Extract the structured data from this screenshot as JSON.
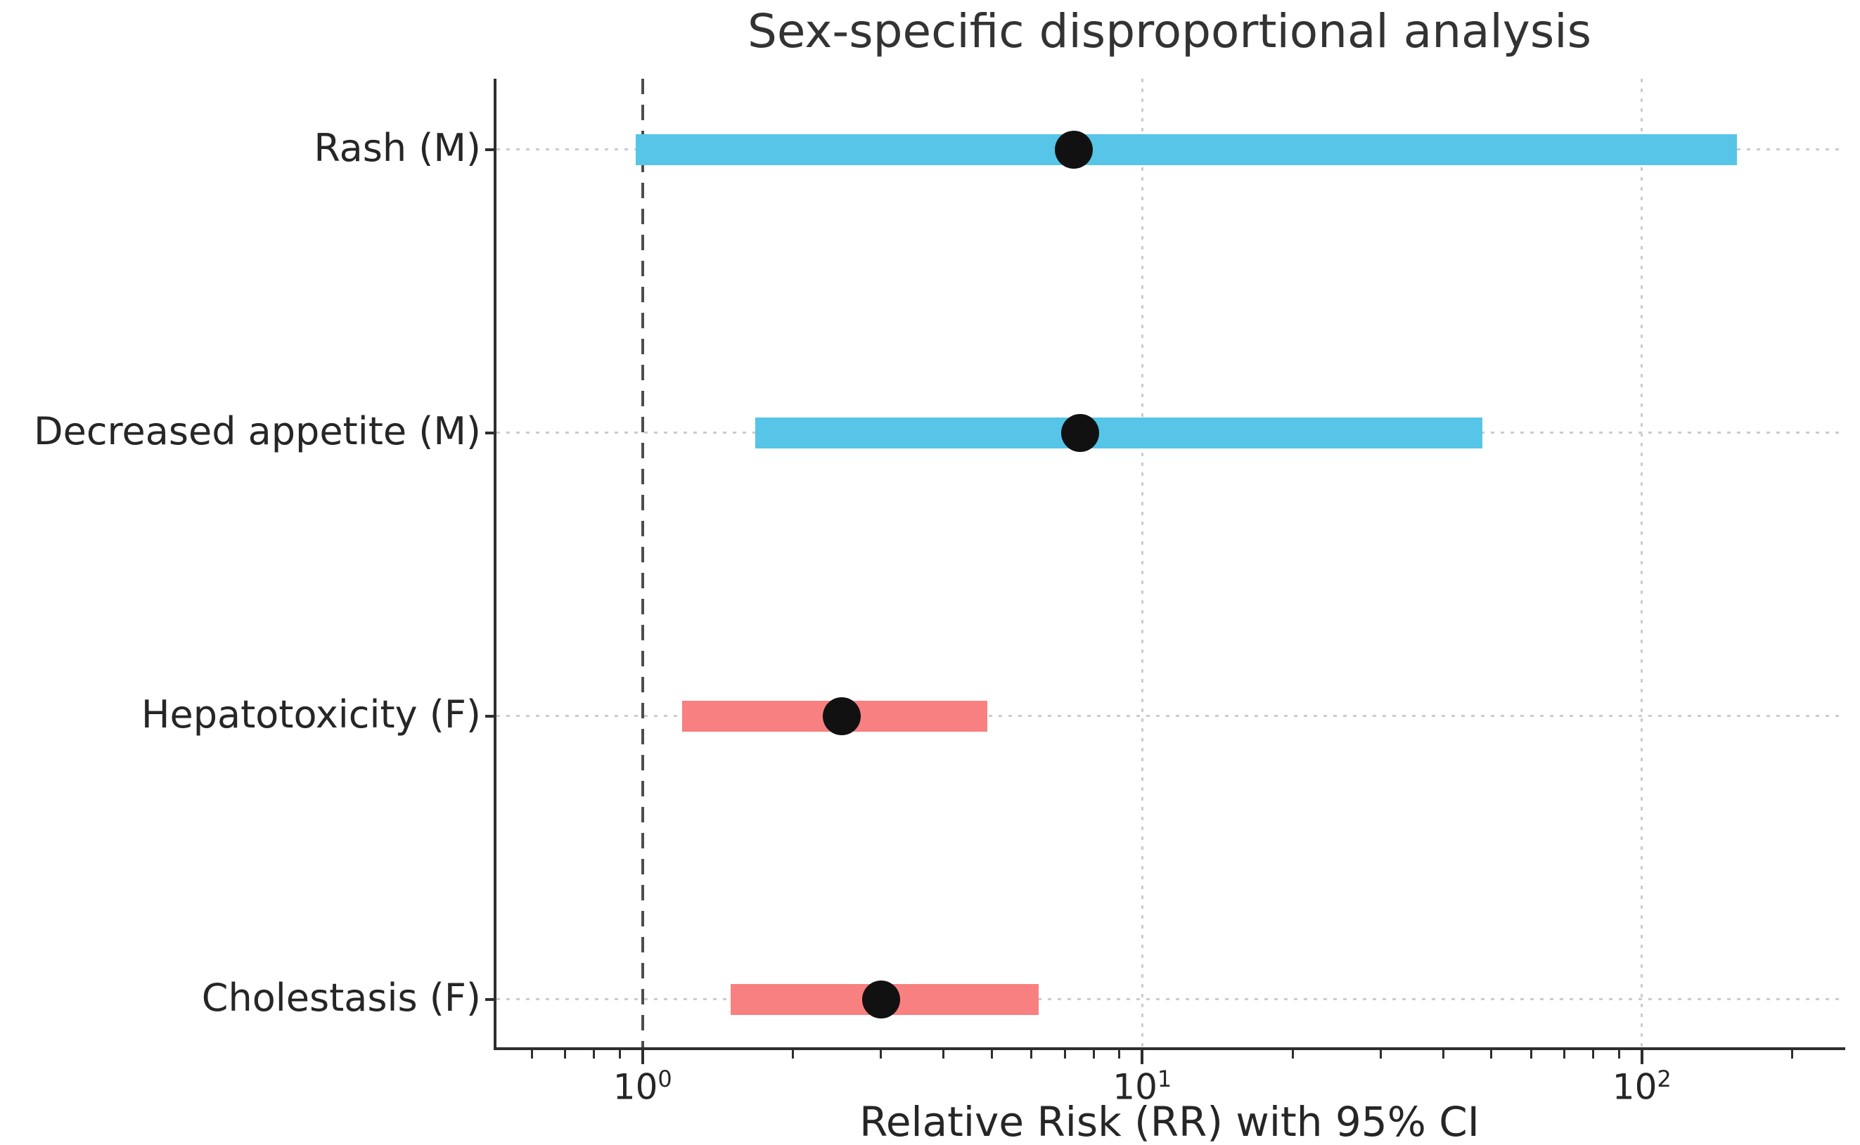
{
  "title": "Sex-specific disproportional analysis",
  "chart_data": {
    "type": "scatter",
    "subtype": "forest-plot-horizontal-ci",
    "title": "Sex-specific disproportional analysis",
    "xlabel": "Relative Risk (RR) with 95% CI",
    "x_scale": "log",
    "xlim": [
      0.51,
      252
    ],
    "reference_line_x": 1.0,
    "grid": true,
    "categories": [
      "Rash (M)",
      "Decreased appetite (M)",
      "Hepatotoxicity (F)",
      "Cholestasis (F)"
    ],
    "points": [
      {
        "label": "Rash (M)",
        "rr": 7.3,
        "ci_low": 0.97,
        "ci_high": 155,
        "bar_color": "#56C5E8"
      },
      {
        "label": "Decreased appetite (M)",
        "rr": 7.5,
        "ci_low": 1.68,
        "ci_high": 48,
        "bar_color": "#56C5E8"
      },
      {
        "label": "Hepatotoxicity (F)",
        "rr": 2.5,
        "ci_low": 1.2,
        "ci_high": 4.9,
        "bar_color": "#F88080"
      },
      {
        "label": "Cholestasis (F)",
        "rr": 3.0,
        "ci_low": 1.5,
        "ci_high": 6.2,
        "bar_color": "#F88080"
      }
    ],
    "marker_color": "#111111",
    "x_major_ticks": [
      {
        "value": 1,
        "mantissa": "10",
        "exponent": "0"
      },
      {
        "value": 10,
        "mantissa": "10",
        "exponent": "1"
      },
      {
        "value": 100,
        "mantissa": "10",
        "exponent": "2"
      }
    ],
    "x_minor_ticks": [
      0.6,
      0.7,
      0.8,
      0.9,
      2,
      3,
      4,
      5,
      6,
      7,
      8,
      9,
      20,
      30,
      40,
      50,
      60,
      70,
      80,
      90,
      200
    ]
  },
  "colors": {
    "male_bar": "#56C5E8",
    "female_bar": "#F88080",
    "reference_line": "#4d4d4d",
    "gridline": "#cccccc",
    "axis": "#2e2e2e",
    "text": "#262626",
    "background": "#ffffff"
  }
}
